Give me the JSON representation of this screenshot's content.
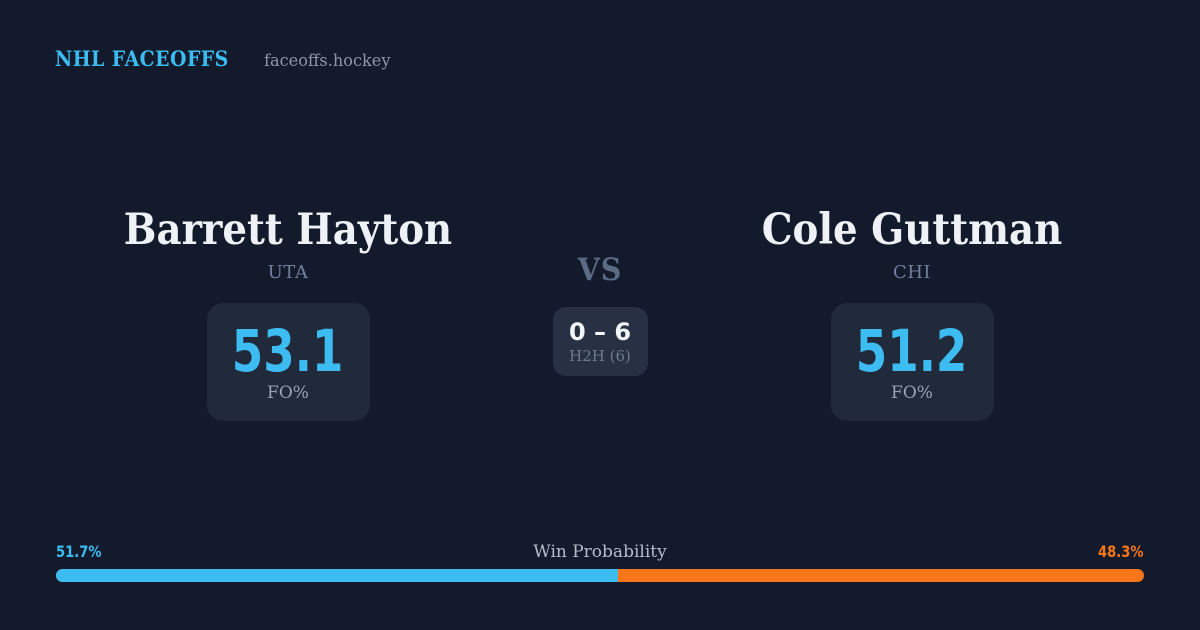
{
  "brand": {
    "title": "NHL FACEOFFS",
    "domain": "faceoffs.hockey"
  },
  "matchup": {
    "vs_label": "VS",
    "h2h": {
      "score": "0 – 6",
      "label": "H2H (6)"
    },
    "players": [
      {
        "name": "Barrett Hayton",
        "team": "UTA",
        "stat_value": "53.1",
        "stat_label": "FO%"
      },
      {
        "name": "Cole Guttman",
        "team": "CHI",
        "stat_value": "51.2",
        "stat_label": "FO%"
      }
    ]
  },
  "win_probability": {
    "label": "Win Probability",
    "left_pct_label": "51.7%",
    "right_pct_label": "48.3%",
    "left_value": 51.7,
    "right_value": 48.3
  },
  "colors": {
    "background": "#121a2b",
    "card": "#202a3a",
    "card_light": "#273143",
    "accent_blue": "#3dbcf2",
    "accent_orange": "#f9761a",
    "name_text": "#eef2f6",
    "team_text": "#72809b",
    "vs_text": "#5c6b84",
    "stat_label_text": "#9aa3b1",
    "h2h_label_text": "#6f7b91",
    "winprob_label_text": "#b4bdca",
    "domain_text": "#8e97a6"
  },
  "chart_data": {
    "type": "bar",
    "title": "Win Probability",
    "categories": [
      "Barrett Hayton (UTA)",
      "Cole Guttman (CHI)"
    ],
    "series": [
      {
        "name": "Faceoff %",
        "values": [
          53.1,
          51.2
        ]
      },
      {
        "name": "Win Probability %",
        "values": [
          51.7,
          48.3
        ]
      },
      {
        "name": "H2H faceoff wins (of 6)",
        "values": [
          0,
          6
        ]
      }
    ],
    "xlim": [
      0,
      100
    ],
    "legend_position": "none",
    "grid": false
  }
}
